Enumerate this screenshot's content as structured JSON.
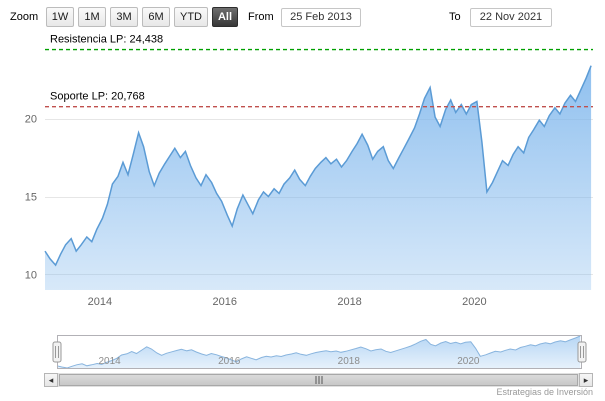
{
  "toolbar": {
    "zoom_label": "Zoom",
    "range_buttons": [
      "1W",
      "1M",
      "3M",
      "6M",
      "YTD",
      "All"
    ],
    "selected_button": "All",
    "from_label": "From",
    "from_value": "25 Feb 2013",
    "to_label": "To",
    "to_value": "22 Nov 2021"
  },
  "chart_data": {
    "type": "area",
    "title": "",
    "xlabel": "",
    "ylabel": "",
    "xlim": [
      2013.12,
      2021.9
    ],
    "ylim": [
      9.0,
      25.5
    ],
    "xticks": [
      2014,
      2016,
      2018,
      2020
    ],
    "yticks": [
      10,
      15,
      20
    ],
    "grid": true,
    "legend": false,
    "x": [
      2013.12,
      2013.2,
      2013.29,
      2013.37,
      2013.45,
      2013.54,
      2013.62,
      2013.7,
      2013.79,
      2013.87,
      2013.95,
      2014.04,
      2014.12,
      2014.2,
      2014.29,
      2014.37,
      2014.45,
      2014.54,
      2014.62,
      2014.7,
      2014.79,
      2014.87,
      2014.95,
      2015.04,
      2015.12,
      2015.2,
      2015.29,
      2015.37,
      2015.45,
      2015.54,
      2015.62,
      2015.7,
      2015.79,
      2015.87,
      2015.95,
      2016.04,
      2016.12,
      2016.2,
      2016.29,
      2016.37,
      2016.45,
      2016.54,
      2016.62,
      2016.7,
      2016.79,
      2016.87,
      2016.95,
      2017.04,
      2017.12,
      2017.2,
      2017.29,
      2017.37,
      2017.45,
      2017.54,
      2017.62,
      2017.7,
      2017.79,
      2017.87,
      2017.95,
      2018.04,
      2018.12,
      2018.2,
      2018.29,
      2018.37,
      2018.45,
      2018.54,
      2018.62,
      2018.7,
      2018.79,
      2018.87,
      2018.95,
      2019.04,
      2019.12,
      2019.2,
      2019.29,
      2019.37,
      2019.45,
      2019.54,
      2019.62,
      2019.7,
      2019.79,
      2019.87,
      2019.95,
      2020.04,
      2020.12,
      2020.2,
      2020.29,
      2020.37,
      2020.45,
      2020.54,
      2020.62,
      2020.7,
      2020.79,
      2020.87,
      2020.95,
      2021.04,
      2021.12,
      2021.2,
      2021.29,
      2021.37,
      2021.45,
      2021.54,
      2021.62,
      2021.7,
      2021.79,
      2021.87
    ],
    "values": [
      11.5,
      11.0,
      10.6,
      11.3,
      11.9,
      12.3,
      11.5,
      11.9,
      12.4,
      12.1,
      12.9,
      13.6,
      14.5,
      15.8,
      16.3,
      17.2,
      16.4,
      17.8,
      19.1,
      18.2,
      16.6,
      15.7,
      16.5,
      17.1,
      17.6,
      18.1,
      17.5,
      17.9,
      17.0,
      16.2,
      15.7,
      16.4,
      15.9,
      15.2,
      14.7,
      13.8,
      13.1,
      14.2,
      15.1,
      14.5,
      13.9,
      14.8,
      15.3,
      15.0,
      15.5,
      15.2,
      15.8,
      16.2,
      16.7,
      16.1,
      15.7,
      16.3,
      16.8,
      17.2,
      17.5,
      17.1,
      17.4,
      16.9,
      17.3,
      17.9,
      18.4,
      19.0,
      18.3,
      17.4,
      17.9,
      18.2,
      17.3,
      16.8,
      17.5,
      18.1,
      18.7,
      19.4,
      20.3,
      21.3,
      22.0,
      20.1,
      19.5,
      20.6,
      21.2,
      20.4,
      20.9,
      20.3,
      20.9,
      21.1,
      18.5,
      15.3,
      15.9,
      16.6,
      17.3,
      17.0,
      17.7,
      18.2,
      17.8,
      18.8,
      19.3,
      19.9,
      19.5,
      20.2,
      20.7,
      20.3,
      21.0,
      21.5,
      21.1,
      21.8,
      22.6,
      23.4
    ],
    "annotations": [
      {
        "label": "Resistencia LP: 24,438",
        "value": 24.438,
        "color": "#00a000",
        "style": "dashed"
      },
      {
        "label": "Soporte LP: 20,768",
        "value": 20.768,
        "color": "#c0504d",
        "style": "dashed"
      }
    ],
    "colors": {
      "line": "#5b9bd5",
      "area_base": "#7cb5ec"
    }
  },
  "navigator": {
    "xticks": [
      2014,
      2016,
      2018,
      2020
    ]
  },
  "scrollbar": {
    "left_arrow": "◂",
    "right_arrow": "▸"
  },
  "credit": "Estrategias de Inversión"
}
